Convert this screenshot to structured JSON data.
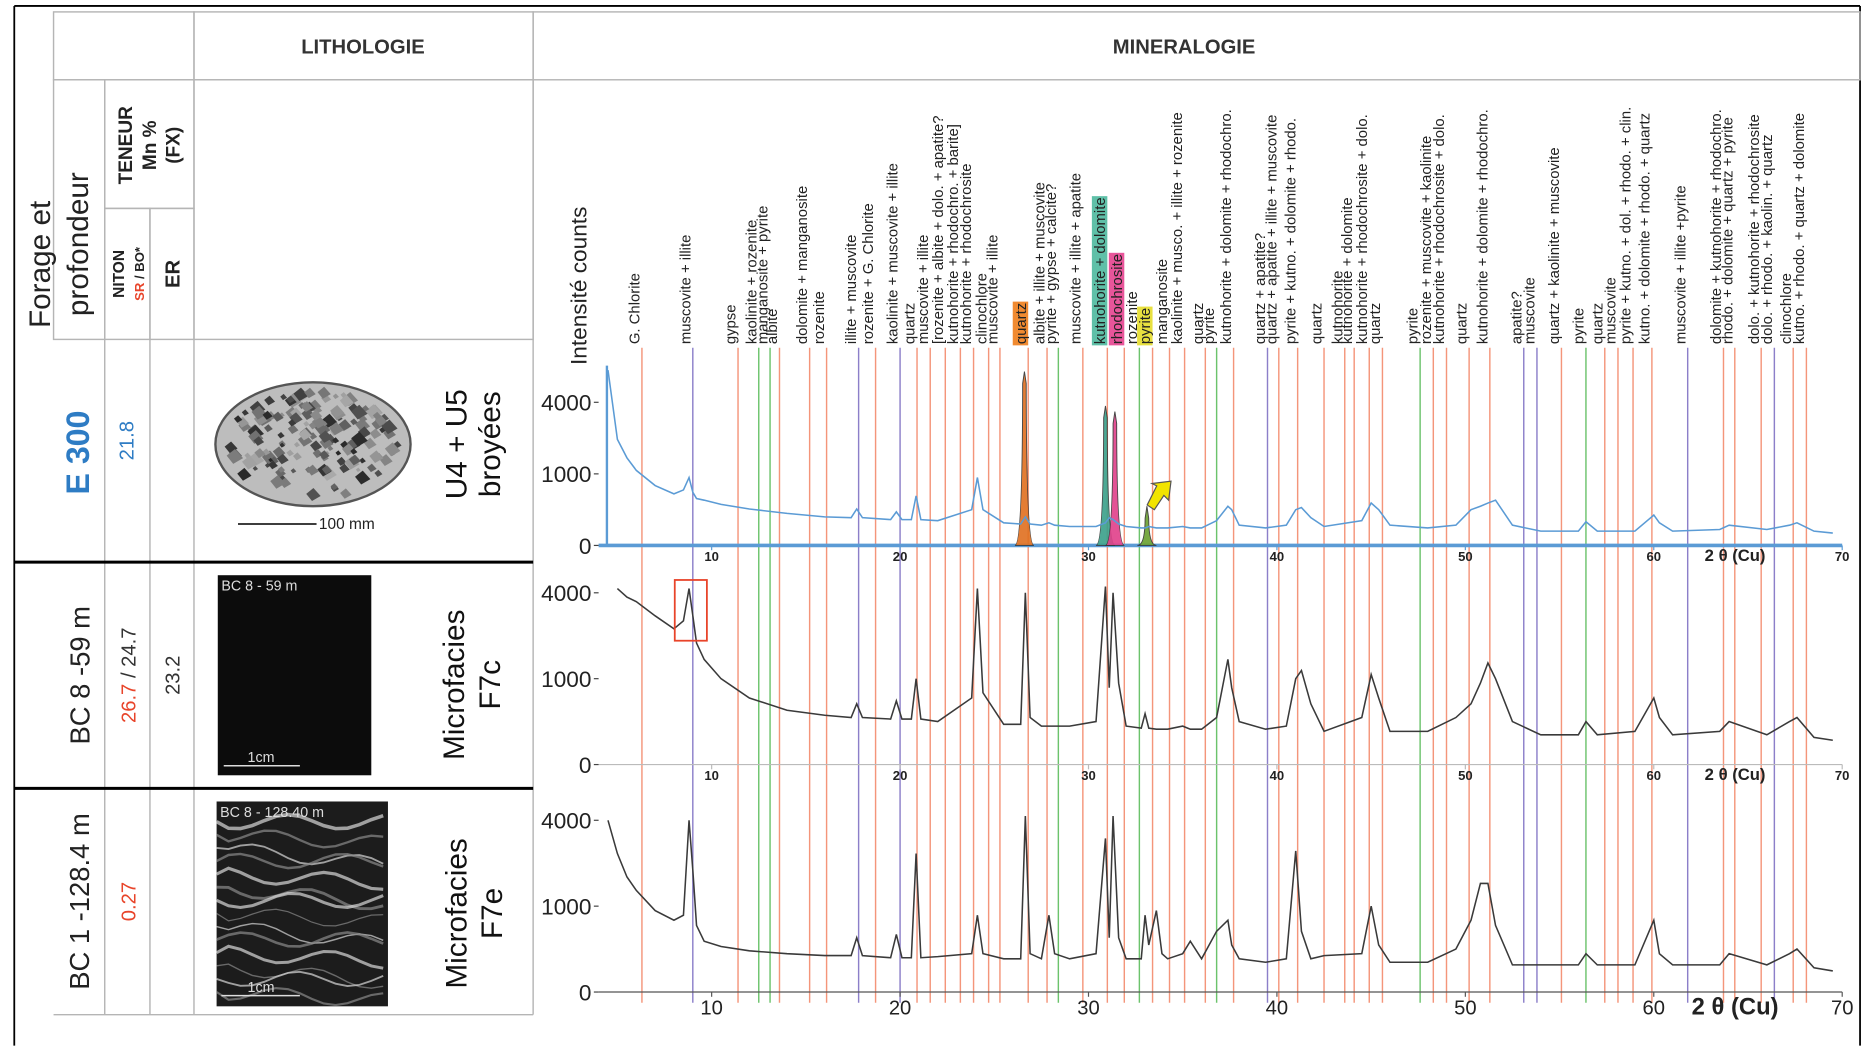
{
  "header": {
    "lithologie": "LITHOLOGIE",
    "mineralogie": "MINERALOGIE",
    "forage": "Forage et",
    "profondeur": "profondeur",
    "teneur": "TENEUR",
    "mn": "Mn %",
    "fx": "(FX)",
    "niton": "NITON",
    "sr": "SR",
    "bo": "/ BO*",
    "er": "ER"
  },
  "rows": [
    {
      "sample": "E 300",
      "niton": "21.8",
      "lithology": {
        "scale": "100 mm",
        "description_1": "U4 + U5",
        "description_2": "broyées"
      }
    },
    {
      "sample": "BC 8 -59 m",
      "niton": "26.7",
      "niton_bo": "/ 24.7",
      "er": "23.2",
      "lithology": {
        "image_label": "BC 8 - 59 m",
        "scale": "1cm",
        "description_1": "Microfacies",
        "description_2": "F7c"
      }
    },
    {
      "sample": "BC 1 -128.4 m",
      "niton": "0.27",
      "lithology": {
        "image_label": "BC 8 - 128.40 m",
        "scale": "1cm",
        "description_1": "Microfacies",
        "description_2": "F7e"
      }
    }
  ],
  "chart_data": [
    {
      "type": "line",
      "ylabel": "Intensité counts",
      "xlabel": "2 θ (Cu)",
      "yscale": "sqrt",
      "grid": false,
      "color": "#5b9bd5",
      "xlim": [
        4,
        70
      ],
      "ylim": [
        0,
        7000
      ],
      "xticks": [
        10,
        20,
        30,
        40,
        50,
        60,
        70
      ],
      "yticks": [
        0,
        1000,
        4000
      ],
      "x": [
        4.5,
        5,
        5.5,
        6,
        7,
        8,
        8.5,
        8.8,
        9.0,
        9.2,
        9.6,
        10.5,
        12,
        14,
        16,
        17.4,
        17.7,
        18,
        19.5,
        19.8,
        20.1,
        20.6,
        20.85,
        21.1,
        22,
        23.8,
        24.1,
        24.4,
        25.5,
        26.4,
        26.65,
        26.9,
        27.5,
        27.9,
        28.2,
        29,
        30.4,
        30.9,
        31.1,
        31.3,
        31.6,
        32,
        32.8,
        33.0,
        33.2,
        33.6,
        33.9,
        34.2,
        35,
        35.4,
        36,
        36.8,
        37.4,
        37.6,
        38,
        39.4,
        40.5,
        41.0,
        41.3,
        41.8,
        42.5,
        44.5,
        45.0,
        45.4,
        46,
        48,
        49.5,
        50.3,
        50.8,
        51.2,
        51.6,
        52.5,
        54,
        56.0,
        56.4,
        57,
        59,
        60.0,
        60.3,
        61,
        63.5,
        64,
        66,
        67.2,
        67.6,
        68.5,
        69.5
      ],
      "values": [
        6000,
        2200,
        1500,
        1100,
        700,
        520,
        600,
        900,
        550,
        430,
        400,
        330,
        260,
        200,
        160,
        150,
        260,
        150,
        130,
        220,
        130,
        130,
        480,
        130,
        120,
        250,
        900,
        250,
        100,
        90,
        160,
        90,
        80,
        100,
        80,
        70,
        70,
        100,
        150,
        130,
        90,
        70,
        60,
        60,
        70,
        60,
        60,
        60,
        70,
        60,
        60,
        120,
        300,
        250,
        80,
        60,
        80,
        250,
        280,
        150,
        70,
        120,
        350,
        250,
        80,
        60,
        80,
        250,
        300,
        350,
        400,
        80,
        40,
        40,
        110,
        40,
        40,
        180,
        100,
        40,
        50,
        80,
        50,
        80,
        100,
        40,
        30
      ],
      "fitted_peaks": [
        {
          "center": 26.6,
          "height": 5900,
          "color": "#e07020"
        },
        {
          "center": 30.9,
          "height": 3800,
          "color": "#3aa08a"
        },
        {
          "center": 31.4,
          "height": 3500,
          "color": "#e0408a"
        },
        {
          "center": 33.1,
          "height": 300,
          "color": "#6aa030"
        }
      ],
      "annotations": [
        {
          "x": 6.3,
          "label": "G. Chlorite",
          "color": "#f4957a"
        },
        {
          "x": 9.0,
          "label": "muscovite + illite",
          "color": "#8c7fc9"
        },
        {
          "x": 11.4,
          "label": "gypse",
          "color": "#f4957a"
        },
        {
          "x": 12.5,
          "label": "kaolinite + rozenite",
          "color": "#6cc36c"
        },
        {
          "x": 13.1,
          "label": "manganosite + pyrite",
          "color": "#6cc36c"
        },
        {
          "x": 13.6,
          "label": "albite",
          "color": "#f4957a"
        },
        {
          "x": 15.2,
          "label": "dolomite + manganosite",
          "color": "#f4957a"
        },
        {
          "x": 16.1,
          "label": "rozenite",
          "color": "#f4957a"
        },
        {
          "x": 17.8,
          "label": "illite + muscovite",
          "color": "#8c7fc9"
        },
        {
          "x": 18.7,
          "label": "rozenite + G. Chlorite",
          "color": "#f4957a"
        },
        {
          "x": 20.0,
          "label": "kaolinite + muscovite + illite",
          "color": "#8c7fc9"
        },
        {
          "x": 20.9,
          "label": "quartz",
          "color": "#f4957a"
        },
        {
          "x": 21.6,
          "label": "muscovite + illite",
          "color": "#f4957a"
        },
        {
          "x": 22.4,
          "label": "[rozenite + albite + dolo. + apatite?",
          "color": "#f4957a"
        },
        {
          "x": 23.2,
          "label": "kutnohorite + rhodochro. + barite]",
          "color": "#f4957a"
        },
        {
          "x": 23.9,
          "label": "kutnohorite + rhodochrosite",
          "color": "#f4957a"
        },
        {
          "x": 24.7,
          "label": "clinochlore",
          "color": "#f4957a"
        },
        {
          "x": 25.3,
          "label": "muscovite + illite",
          "color": "#f4957a"
        },
        {
          "x": 26.8,
          "label": "quartz",
          "color": "#f4957a",
          "highlight": "#f08a30"
        },
        {
          "x": 27.8,
          "label": "albite + illite + muscovite",
          "color": "#f4957a"
        },
        {
          "x": 28.4,
          "label": "pyrite + gypse + calcite?",
          "color": "#6cc36c"
        },
        {
          "x": 29.7,
          "label": "muscovite + illite + apatite",
          "color": "#f4957a"
        },
        {
          "x": 31.0,
          "label": "kutnohorite + dolomite",
          "color": "#f4957a",
          "highlight": "#5fc0a8"
        },
        {
          "x": 31.9,
          "label": "rhodochrosite",
          "color": "#f4957a",
          "highlight": "#e8559a"
        },
        {
          "x": 32.7,
          "label": "rozenite",
          "color": "#6cc36c"
        },
        {
          "x": 33.4,
          "label": "pyrite",
          "color": "#f4957a",
          "highlight": "#e8e040"
        },
        {
          "x": 34.3,
          "label": "manganosite",
          "color": "#f4957a"
        },
        {
          "x": 35.1,
          "label": "kaolinite + musco. + illite + rozenite",
          "color": "#f4957a"
        },
        {
          "x": 36.2,
          "label": "quartz",
          "color": "#f4957a"
        },
        {
          "x": 36.8,
          "label": "pyrite",
          "color": "#6cc36c"
        },
        {
          "x": 37.7,
          "label": "kutnohorite + dolomite + rhodochro.",
          "color": "#f4957a"
        },
        {
          "x": 39.5,
          "label": "quartz + apatite?",
          "color": "#8c7fc9"
        },
        {
          "x": 40.1,
          "label": "quartz + apatite + illite + muscovite",
          "color": "#f4957a"
        },
        {
          "x": 41.1,
          "label": "pyrite + kutno. + dolomite + rhodo.",
          "color": "#f4957a"
        },
        {
          "x": 42.5,
          "label": "quartz",
          "color": "#f4957a"
        },
        {
          "x": 43.6,
          "label": "kutnohorite",
          "color": "#f4957a"
        },
        {
          "x": 44.1,
          "label": "kutnohorite + dolomite",
          "color": "#f4957a"
        },
        {
          "x": 44.9,
          "label": "kutnohorite + rhodochrosite + dolo.",
          "color": "#f4957a"
        },
        {
          "x": 45.6,
          "label": "quartz",
          "color": "#f4957a"
        },
        {
          "x": 47.6,
          "label": "pyrite",
          "color": "#6cc36c"
        },
        {
          "x": 48.3,
          "label": "rozenite + muscovite + kaolinite",
          "color": "#f4957a"
        },
        {
          "x": 49.0,
          "label": "kutnohorite + rhodochrosite + dolo.",
          "color": "#f4957a"
        },
        {
          "x": 50.2,
          "label": "quartz",
          "color": "#f4957a"
        },
        {
          "x": 51.3,
          "label": "kutnohorite + dolomite + rhodochro.",
          "color": "#f4957a"
        },
        {
          "x": 53.1,
          "label": "apatite?",
          "color": "#8c7fc9"
        },
        {
          "x": 53.8,
          "label": "muscovite",
          "color": "#8c7fc9"
        },
        {
          "x": 55.1,
          "label": "quartz + kaolinite + muscovite",
          "color": "#f4957a"
        },
        {
          "x": 56.4,
          "label": "pyrite",
          "color": "#6cc36c"
        },
        {
          "x": 57.4,
          "label": "quartz",
          "color": "#f4957a"
        },
        {
          "x": 58.1,
          "label": "muscovite",
          "color": "#f4957a"
        },
        {
          "x": 58.9,
          "label": "pyrite + kutno. + dol. + rhodo. + clin.",
          "color": "#f4957a"
        },
        {
          "x": 59.9,
          "label": "kutno. + dolomite + rhodo. + quartz",
          "color": "#f4957a"
        },
        {
          "x": 61.8,
          "label": "muscovite + illite +pyrite",
          "color": "#8c7fc9"
        },
        {
          "x": 63.7,
          "label": "dolomite + kutnohorite + rhodochro.",
          "color": "#f4957a"
        },
        {
          "x": 64.3,
          "label": "rhodo. + dolomite + quartz + pyrite",
          "color": "#f4957a"
        },
        {
          "x": 65.7,
          "label": "dolo. + kutnohorite + rhodochrosite",
          "color": "#f4957a"
        },
        {
          "x": 66.4,
          "label": "dolo. + rhodo. + kaolin. + quartz",
          "color": "#8c7fc9"
        },
        {
          "x": 67.4,
          "label": "clinochlore",
          "color": "#f4957a"
        },
        {
          "x": 68.1,
          "label": "kutno. + rhodo. + quartz + dolomite",
          "color": "#f4957a"
        }
      ]
    },
    {
      "type": "line",
      "xlabel": "2 θ (Cu)",
      "yscale": "sqrt",
      "grid": false,
      "color": "#3a3a3a",
      "xlim": [
        4,
        70
      ],
      "ylim": [
        0,
        4800
      ],
      "xticks": [
        10,
        20,
        30,
        40,
        50,
        60,
        70
      ],
      "yticks": [
        0,
        1000,
        4000
      ],
      "x": [
        4.5,
        5,
        5.5,
        6,
        7,
        8,
        8.5,
        8.8,
        9.0,
        9.2,
        9.6,
        10.5,
        12,
        14,
        16,
        17.4,
        17.7,
        18,
        19.5,
        19.8,
        20.1,
        20.6,
        20.85,
        21.1,
        22,
        23.8,
        24.1,
        24.4,
        25.5,
        26.4,
        26.65,
        26.9,
        27.5,
        27.9,
        28.2,
        29,
        30.4,
        30.9,
        31.1,
        31.3,
        31.6,
        32,
        32.8,
        33.0,
        33.2,
        33.6,
        33.9,
        34.2,
        35,
        35.4,
        36,
        36.8,
        37.4,
        37.6,
        38,
        39.4,
        40.5,
        41.0,
        41.3,
        41.8,
        42.5,
        44.5,
        45.0,
        45.4,
        46,
        48,
        49.5,
        50.3,
        50.8,
        51.2,
        51.6,
        52.5,
        54,
        56.0,
        56.4,
        57,
        59,
        60.0,
        60.3,
        61,
        63.5,
        64,
        66,
        67.2,
        67.6,
        68.5,
        69.5
      ],
      "values": [
        null,
        4200,
        3800,
        3600,
        3000,
        2500,
        2800,
        4200,
        3000,
        2000,
        1500,
        1000,
        600,
        400,
        330,
        300,
        500,
        300,
        280,
        550,
        280,
        280,
        1000,
        280,
        250,
        600,
        4200,
        700,
        220,
        220,
        4000,
        300,
        200,
        200,
        200,
        200,
        250,
        4300,
        800,
        4000,
        900,
        200,
        180,
        350,
        180,
        170,
        170,
        170,
        200,
        170,
        170,
        300,
        1500,
        800,
        250,
        170,
        200,
        1000,
        1200,
        500,
        150,
        300,
        1100,
        600,
        150,
        150,
        300,
        500,
        900,
        1400,
        1000,
        250,
        120,
        120,
        250,
        120,
        150,
        600,
        300,
        120,
        150,
        250,
        120,
        250,
        300,
        100,
        80
      ]
    },
    {
      "type": "line",
      "xlabel": "2 θ (Cu)",
      "yscale": "sqrt",
      "grid": false,
      "color": "#3a3a3a",
      "xlim": [
        4,
        70
      ],
      "ylim": [
        0,
        5300
      ],
      "xticks": [
        10,
        20,
        30,
        40,
        50,
        60,
        70
      ],
      "yticks": [
        0,
        1000,
        4000
      ],
      "x": [
        4.5,
        5,
        5.5,
        6,
        7,
        8,
        8.5,
        8.8,
        9.0,
        9.2,
        9.6,
        10.5,
        12,
        14,
        16,
        17.4,
        17.7,
        18,
        19.5,
        19.8,
        20.1,
        20.6,
        20.85,
        21.1,
        22,
        23.8,
        24.1,
        24.4,
        25.5,
        26.4,
        26.65,
        26.9,
        27.5,
        27.9,
        28.2,
        29,
        30.4,
        30.9,
        31.1,
        31.3,
        31.6,
        32,
        32.8,
        33.0,
        33.2,
        33.6,
        33.9,
        34.2,
        35,
        35.4,
        36,
        36.8,
        37.4,
        37.6,
        38,
        39.4,
        40.5,
        41.0,
        41.3,
        41.8,
        42.5,
        44.5,
        45.0,
        45.4,
        46,
        48,
        49.5,
        50.3,
        50.8,
        51.2,
        51.6,
        52.5,
        54,
        56.0,
        56.4,
        57,
        59,
        60.0,
        60.3,
        61,
        63.5,
        64,
        66,
        67.2,
        67.6,
        68.5,
        69.5
      ],
      "values": [
        4000,
        2600,
        1800,
        1400,
        900,
        700,
        800,
        4000,
        2000,
        600,
        350,
        280,
        230,
        200,
        180,
        180,
        400,
        180,
        160,
        450,
        160,
        160,
        2600,
        160,
        170,
        200,
        800,
        200,
        150,
        150,
        4200,
        200,
        150,
        800,
        200,
        150,
        200,
        3200,
        400,
        4200,
        400,
        150,
        150,
        800,
        300,
        900,
        200,
        150,
        200,
        350,
        150,
        500,
        700,
        300,
        150,
        120,
        150,
        2700,
        500,
        150,
        180,
        200,
        1000,
        300,
        120,
        120,
        250,
        700,
        1600,
        1600,
        600,
        100,
        100,
        100,
        200,
        100,
        100,
        700,
        200,
        100,
        100,
        200,
        100,
        200,
        250,
        80,
        60
      ]
    }
  ]
}
